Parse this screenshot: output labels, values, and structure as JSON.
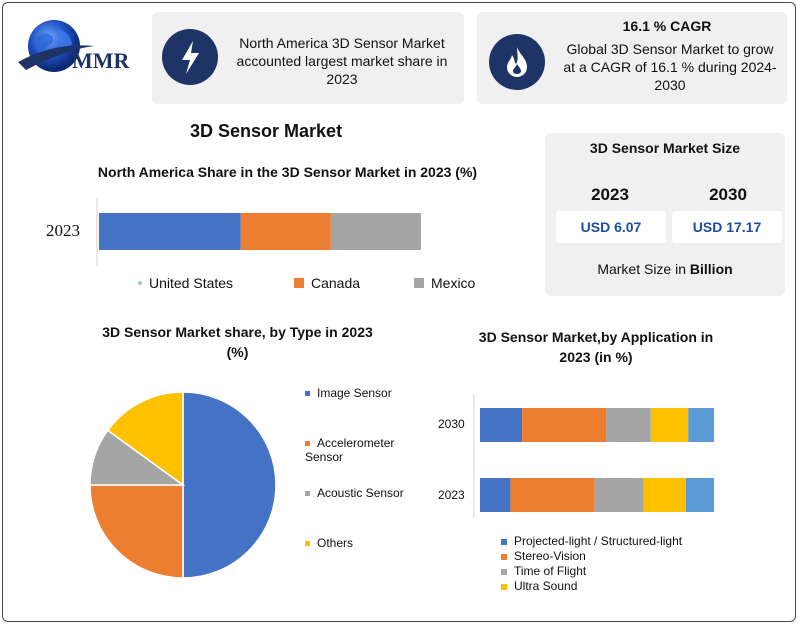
{
  "logo": {
    "text": "MMR"
  },
  "header_card_1": {
    "text": "North America 3D Sensor Market accounted largest market share in 2023"
  },
  "header_card_2": {
    "title": "16.1 % CAGR",
    "text": "Global 3D Sensor Market to grow at a CAGR of 16.1 % during 2024-2030"
  },
  "main_title": "3D Sensor Market",
  "market_size": {
    "title": "3D Sensor Market Size",
    "year_1": "2023",
    "year_2": "2030",
    "value_1": "USD 6.07",
    "value_2": "USD 17.17",
    "footer_prefix": "Market Size in ",
    "footer_unit": "Billion"
  },
  "colors": {
    "blue": "#4472c4",
    "orange": "#ed7d31",
    "gray": "#a5a5a5",
    "yellow": "#ffc000",
    "light_blue": "#5b9bd5",
    "navy": "#1f3466"
  },
  "chart_data": [
    {
      "type": "bar",
      "orientation": "horizontal-stacked",
      "title": "North America Share in the 3D Sensor Market in 2023 (%)",
      "categories": [
        "2023"
      ],
      "series": [
        {
          "name": "United States",
          "values": [
            44
          ]
        },
        {
          "name": "Canada",
          "values": [
            28
          ]
        },
        {
          "name": "Mexico",
          "values": [
            28
          ]
        }
      ],
      "legend": "bottom"
    },
    {
      "type": "pie",
      "title": "3D Sensor Market share, by Type in 2023 (%)",
      "labels": [
        "Image Sensor",
        "Accelerometer Sensor",
        "Acoustic Sensor",
        "Others"
      ],
      "values": [
        50,
        25,
        10,
        15
      ],
      "legend": "right"
    },
    {
      "type": "bar",
      "orientation": "horizontal-stacked",
      "title": "3D Sensor Market,by Application in 2023 (in %)",
      "categories": [
        "2030",
        "2023"
      ],
      "series": [
        {
          "name": "Projected-light / Structured-light",
          "values": [
            18,
            13
          ]
        },
        {
          "name": "Stereo-Vision",
          "values": [
            36,
            36
          ]
        },
        {
          "name": "Time of Flight",
          "values": [
            19,
            21
          ]
        },
        {
          "name": "Ultra Sound",
          "values": [
            16,
            18
          ]
        },
        {
          "name": "",
          "values": [
            11,
            12
          ]
        }
      ],
      "legend": "bottom"
    }
  ]
}
